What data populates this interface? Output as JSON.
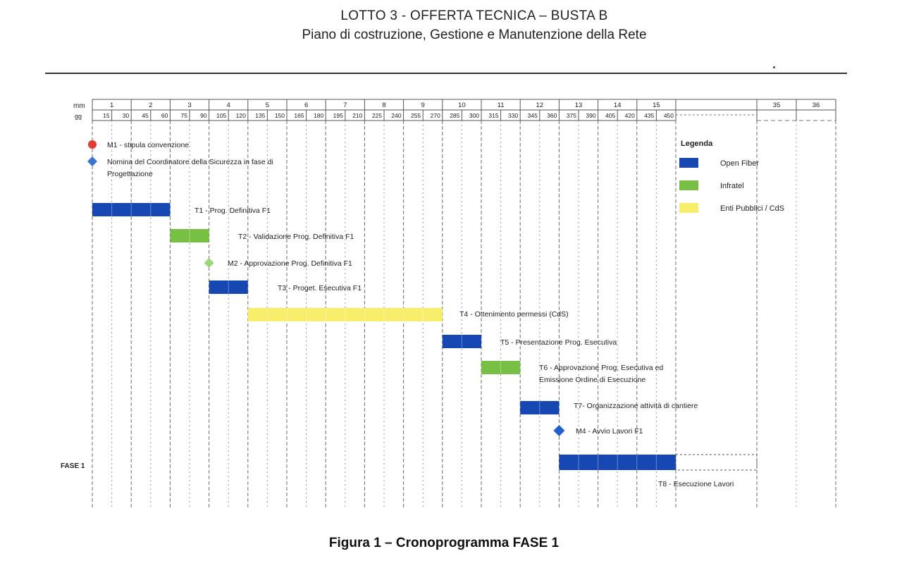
{
  "header": {
    "title": "LOTTO 3 - OFFERTA TECNICA – BUSTA B",
    "subtitle": "Piano di costruzione, Gestione e Manutenzione della Rete"
  },
  "caption": "Figura 1 – Cronoprogramma FASE 1",
  "chart_data": {
    "type": "gantt",
    "axis": {
      "month_row_label": "mm",
      "day_row_label": "gg",
      "months": [
        "1",
        "2",
        "3",
        "4",
        "5",
        "6",
        "7",
        "8",
        "9",
        "10",
        "11",
        "12",
        "13",
        "14",
        "15"
      ],
      "days": [
        15,
        30,
        45,
        60,
        75,
        90,
        105,
        120,
        135,
        150,
        165,
        180,
        195,
        210,
        225,
        240,
        255,
        270,
        285,
        300,
        315,
        330,
        345,
        360,
        375,
        390,
        405,
        420,
        435,
        450
      ],
      "extra_months": [
        "35",
        "36"
      ],
      "range_days": [
        0,
        450
      ]
    },
    "legend": {
      "title": "Legenda",
      "items": [
        {
          "label": "Open Fiber",
          "color": "#1747b3"
        },
        {
          "label": "Infratel",
          "color": "#77c043"
        },
        {
          "label": "Enti Pubblici / CdS",
          "color": "#f7ee6c"
        }
      ]
    },
    "phase_label": "FASE 1",
    "milestones": [
      {
        "label": "M1 - stipula convenzione",
        "day": 0,
        "shape": "circle",
        "color": "#e03c31"
      },
      {
        "label_lines": [
          "Nomina del Coordinatore della Sicurezza in fase di",
          "Progettazione"
        ],
        "day": 0,
        "shape": "diamond",
        "color": "#3a75d1"
      },
      {
        "label": "M2 - Approvazione Prog. Definitiva F1",
        "day": 90,
        "shape": "diamond",
        "color": "#9fd57a"
      },
      {
        "label": "M4 - Avvio Lavori F1",
        "day": 360,
        "shape": "diamond",
        "color": "#1f5fcf"
      }
    ],
    "tasks": [
      {
        "label": "T1 - Prog. Definitiva F1",
        "start": 0,
        "end": 60,
        "owner": "Open Fiber"
      },
      {
        "label": "T2 - Validazione Prog. Definitiva F1",
        "start": 60,
        "end": 90,
        "owner": "Infratel"
      },
      {
        "label": "T3 - Proget. Esecutiva F1",
        "start": 90,
        "end": 120,
        "owner": "Open Fiber"
      },
      {
        "label": "T4 - Ottenimento permessi (CdS)",
        "start": 120,
        "end": 270,
        "owner": "Enti Pubblici / CdS"
      },
      {
        "label": "T5 - Presentazione Prog. Esecutiva",
        "start": 270,
        "end": 300,
        "owner": "Open Fiber"
      },
      {
        "label_lines": [
          "T6 - Approvazione Prog. Esecutiva ed",
          "Emissione Ordine di Esecuzione"
        ],
        "start": 300,
        "end": 330,
        "owner": "Infratel"
      },
      {
        "label": "T7- Organizzazione attività di cantiere",
        "start": 330,
        "end": 360,
        "owner": "Open Fiber"
      },
      {
        "label": "T8 - Esecuzione Lavori",
        "start": 360,
        "end": 450,
        "owner": "Open Fiber",
        "continues": true
      }
    ]
  }
}
